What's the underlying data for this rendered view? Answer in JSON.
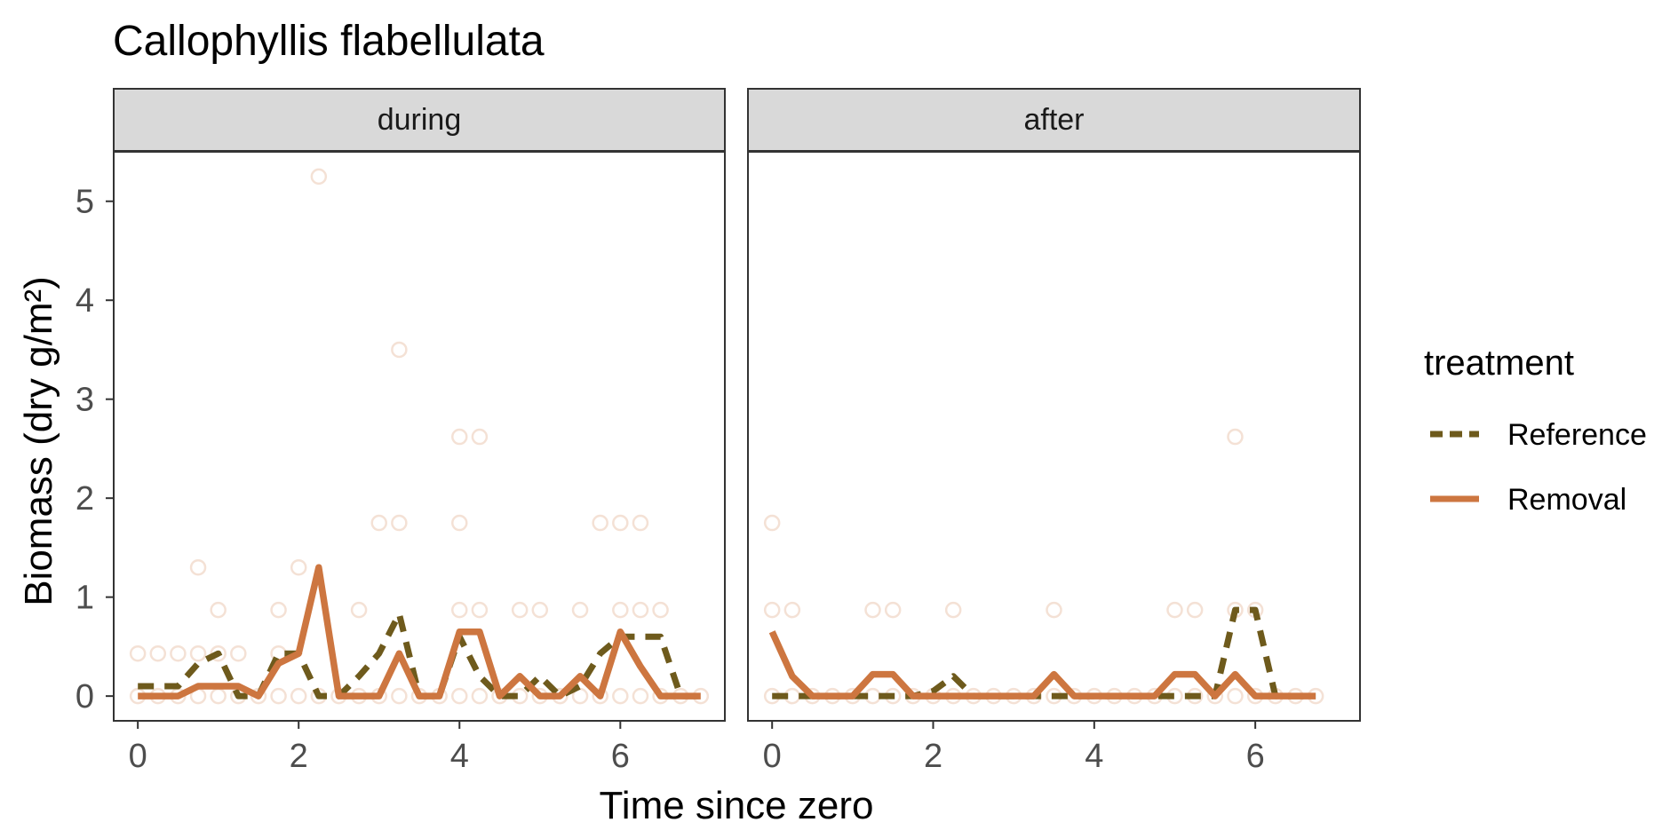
{
  "chart_data": {
    "type": "line",
    "title": "Callophyllis flabellulata",
    "xlabel": "Time since zero",
    "ylabel": "Biomass (dry g/m²)",
    "xlim": [
      -0.3,
      7.3
    ],
    "ylim": [
      -0.25,
      5.5
    ],
    "x_ticks": [
      0,
      2,
      4,
      6
    ],
    "y_ticks": [
      0,
      1,
      2,
      3,
      4,
      5
    ],
    "grid": false,
    "legend": {
      "title": "treatment",
      "position": "right",
      "entries": [
        {
          "label": "Reference",
          "color": "#6e5a1c",
          "style": "dashed"
        },
        {
          "label": "Removal",
          "color": "#cd7640",
          "style": "solid"
        }
      ]
    },
    "panels": [
      {
        "label": "during",
        "series": [
          {
            "name": "Reference",
            "color": "#6e5a1c",
            "style": "dashed",
            "x": [
              0,
              0.25,
              0.5,
              0.75,
              1.0,
              1.25,
              1.5,
              1.75,
              2.0,
              2.25,
              2.5,
              2.75,
              3.0,
              3.25,
              3.5,
              3.75,
              4.0,
              4.25,
              4.5,
              4.75,
              5.0,
              5.25,
              5.5,
              5.75,
              6.0,
              6.25,
              6.5,
              6.75,
              7.0
            ],
            "y": [
              0.1,
              0.1,
              0.1,
              0.33,
              0.43,
              0,
              0,
              0.43,
              0.43,
              0,
              0,
              0.2,
              0.43,
              0.83,
              0,
              0,
              0.6,
              0.2,
              0,
              0,
              0.2,
              0,
              0.1,
              0.43,
              0.6,
              0.6,
              0.6,
              0,
              0
            ]
          },
          {
            "name": "Removal",
            "color": "#cd7640",
            "style": "solid",
            "x": [
              0,
              0.25,
              0.5,
              0.75,
              1.0,
              1.25,
              1.5,
              1.75,
              2.0,
              2.25,
              2.5,
              2.75,
              3.0,
              3.25,
              3.5,
              3.75,
              4.0,
              4.25,
              4.5,
              4.75,
              5.0,
              5.25,
              5.5,
              5.75,
              6.0,
              6.25,
              6.5,
              6.75,
              7.0
            ],
            "y": [
              0,
              0,
              0,
              0.1,
              0.1,
              0.1,
              0,
              0.33,
              0.43,
              1.3,
              0,
              0,
              0,
              0.43,
              0,
              0,
              0.65,
              0.65,
              0,
              0.2,
              0,
              0,
              0.2,
              0,
              0.65,
              0.3,
              0,
              0,
              0
            ]
          }
        ],
        "points": [
          [
            0,
            0
          ],
          [
            0,
            0.43
          ],
          [
            0.25,
            0
          ],
          [
            0.25,
            0.43
          ],
          [
            0.5,
            0
          ],
          [
            0.5,
            0.43
          ],
          [
            0.75,
            0
          ],
          [
            0.75,
            0.43
          ],
          [
            0.75,
            1.3
          ],
          [
            1.0,
            0
          ],
          [
            1.0,
            0.43
          ],
          [
            1.0,
            0.87
          ],
          [
            1.25,
            0
          ],
          [
            1.25,
            0.43
          ],
          [
            1.5,
            0
          ],
          [
            1.75,
            0
          ],
          [
            1.75,
            0.43
          ],
          [
            1.75,
            0.87
          ],
          [
            2.0,
            0
          ],
          [
            2.0,
            1.3
          ],
          [
            2.25,
            0
          ],
          [
            2.25,
            5.25
          ],
          [
            2.5,
            0
          ],
          [
            2.75,
            0
          ],
          [
            2.75,
            0.87
          ],
          [
            3.0,
            0
          ],
          [
            3.0,
            1.75
          ],
          [
            3.25,
            0
          ],
          [
            3.25,
            1.75
          ],
          [
            3.25,
            3.5
          ],
          [
            3.5,
            0
          ],
          [
            3.75,
            0
          ],
          [
            4.0,
            0
          ],
          [
            4.0,
            0.87
          ],
          [
            4.0,
            1.75
          ],
          [
            4.0,
            2.62
          ],
          [
            4.25,
            0
          ],
          [
            4.25,
            0.87
          ],
          [
            4.25,
            2.62
          ],
          [
            4.5,
            0
          ],
          [
            4.75,
            0
          ],
          [
            4.75,
            0.87
          ],
          [
            5.0,
            0
          ],
          [
            5.0,
            0.87
          ],
          [
            5.25,
            0
          ],
          [
            5.5,
            0
          ],
          [
            5.5,
            0.87
          ],
          [
            5.75,
            0
          ],
          [
            5.75,
            1.75
          ],
          [
            6.0,
            0
          ],
          [
            6.0,
            0.87
          ],
          [
            6.0,
            1.75
          ],
          [
            6.25,
            0
          ],
          [
            6.25,
            0.87
          ],
          [
            6.25,
            1.75
          ],
          [
            6.5,
            0
          ],
          [
            6.5,
            0.87
          ],
          [
            6.75,
            0
          ],
          [
            7.0,
            0
          ]
        ]
      },
      {
        "label": "after",
        "series": [
          {
            "name": "Reference",
            "color": "#6e5a1c",
            "style": "dashed",
            "x": [
              0,
              0.25,
              0.5,
              0.75,
              1.0,
              1.25,
              1.5,
              1.75,
              2.0,
              2.25,
              2.5,
              2.75,
              3.0,
              3.25,
              3.5,
              3.75,
              4.0,
              4.25,
              4.5,
              4.75,
              5.0,
              5.25,
              5.5,
              5.75,
              6.0,
              6.25,
              6.5,
              6.75
            ],
            "y": [
              0,
              0,
              0,
              0,
              0,
              0,
              0,
              0,
              0.05,
              0.2,
              0,
              0,
              0,
              0,
              0,
              0,
              0,
              0,
              0,
              0,
              0,
              0,
              0,
              0.87,
              0.87,
              0,
              0,
              0
            ]
          },
          {
            "name": "Removal",
            "color": "#cd7640",
            "style": "solid",
            "x": [
              0,
              0.25,
              0.5,
              0.75,
              1.0,
              1.25,
              1.5,
              1.75,
              2.0,
              2.25,
              2.5,
              2.75,
              3.0,
              3.25,
              3.5,
              3.75,
              4.0,
              4.25,
              4.5,
              4.75,
              5.0,
              5.25,
              5.5,
              5.75,
              6.0,
              6.25,
              6.5,
              6.75
            ],
            "y": [
              0.65,
              0.2,
              0,
              0,
              0,
              0.22,
              0.22,
              0,
              0,
              0,
              0,
              0,
              0,
              0,
              0.22,
              0,
              0,
              0,
              0,
              0,
              0.22,
              0.22,
              0,
              0.22,
              0,
              0,
              0,
              0
            ]
          }
        ],
        "points": [
          [
            0,
            0
          ],
          [
            0,
            0.87
          ],
          [
            0,
            1.75
          ],
          [
            0.25,
            0
          ],
          [
            0.25,
            0.87
          ],
          [
            0.5,
            0
          ],
          [
            0.75,
            0
          ],
          [
            1.0,
            0
          ],
          [
            1.25,
            0
          ],
          [
            1.25,
            0.87
          ],
          [
            1.5,
            0
          ],
          [
            1.5,
            0.87
          ],
          [
            1.75,
            0
          ],
          [
            2.0,
            0
          ],
          [
            2.25,
            0
          ],
          [
            2.25,
            0.87
          ],
          [
            2.5,
            0
          ],
          [
            2.75,
            0
          ],
          [
            3.0,
            0
          ],
          [
            3.25,
            0
          ],
          [
            3.5,
            0
          ],
          [
            3.5,
            0.87
          ],
          [
            3.75,
            0
          ],
          [
            4.0,
            0
          ],
          [
            4.25,
            0
          ],
          [
            4.5,
            0
          ],
          [
            4.75,
            0
          ],
          [
            5.0,
            0
          ],
          [
            5.0,
            0.87
          ],
          [
            5.25,
            0
          ],
          [
            5.25,
            0.87
          ],
          [
            5.5,
            0
          ],
          [
            5.75,
            0
          ],
          [
            5.75,
            0.87
          ],
          [
            5.75,
            2.62
          ],
          [
            6.0,
            0
          ],
          [
            6.0,
            0.87
          ],
          [
            6.25,
            0
          ],
          [
            6.5,
            0
          ],
          [
            6.75,
            0
          ]
        ]
      }
    ]
  }
}
